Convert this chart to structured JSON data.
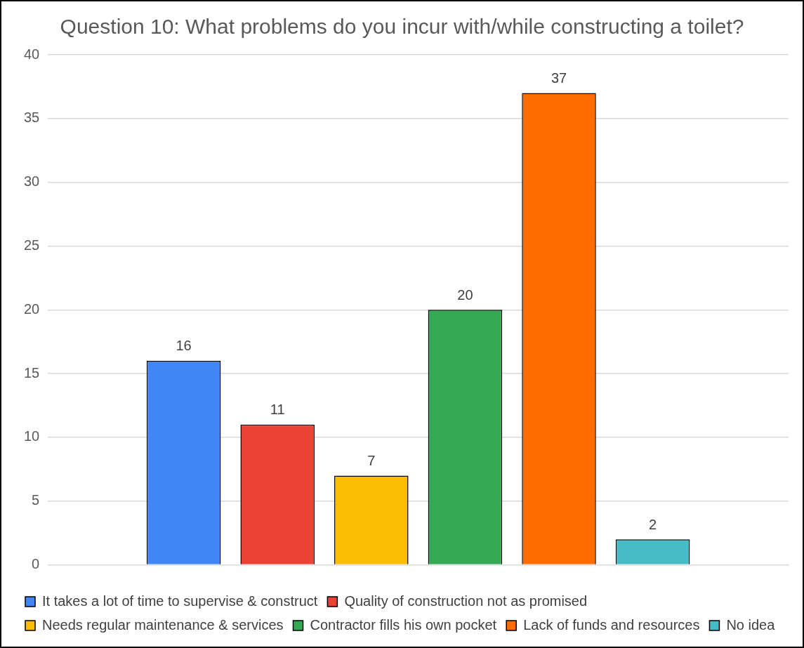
{
  "chart_data": {
    "type": "bar",
    "title": "Question 10: What problems do you incur with/while constructing a toilet?",
    "categories": [
      null
    ],
    "series": [
      {
        "name": "It takes a lot of time to supervise & construct",
        "color": "#4285f4",
        "values": [
          16
        ]
      },
      {
        "name": "Quality of construction not as promised",
        "color": "#ea4335",
        "values": [
          11
        ]
      },
      {
        "name": "Needs regular maintenance & services",
        "color": "#fbbc04",
        "values": [
          7
        ]
      },
      {
        "name": "Contractor fills his own pocket",
        "color": "#34a853",
        "values": [
          20
        ]
      },
      {
        "name": "Lack of funds and resources",
        "color": "#ff6d01",
        "values": [
          37
        ]
      },
      {
        "name": "No idea",
        "color": "#46bdc6",
        "values": [
          2
        ]
      }
    ],
    "ylim": [
      0,
      40
    ],
    "yticks": [
      0,
      5,
      10,
      15,
      20,
      25,
      30,
      35,
      40
    ],
    "grid": "y",
    "legend": "bottom",
    "data_labels": true
  }
}
